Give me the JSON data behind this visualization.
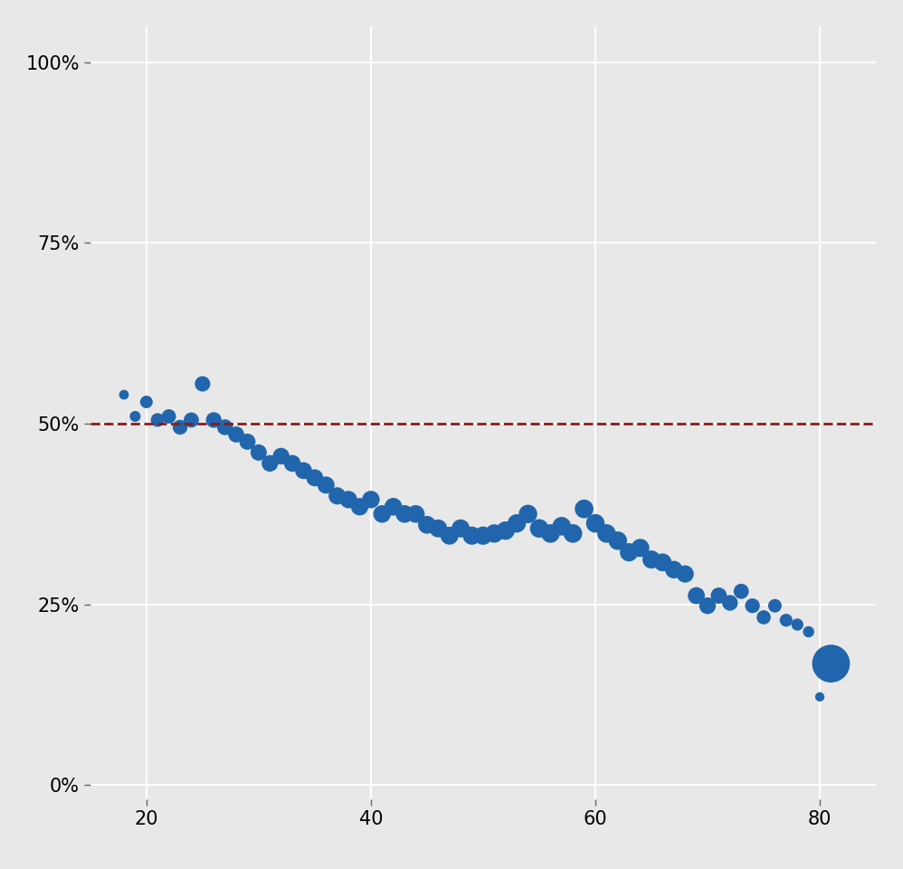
{
  "ages": [
    18,
    19,
    20,
    21,
    22,
    23,
    24,
    25,
    26,
    27,
    28,
    29,
    30,
    31,
    32,
    33,
    34,
    35,
    36,
    37,
    38,
    39,
    40,
    41,
    42,
    43,
    44,
    45,
    46,
    47,
    48,
    49,
    50,
    51,
    52,
    53,
    54,
    55,
    56,
    57,
    58,
    59,
    60,
    61,
    62,
    63,
    64,
    65,
    66,
    67,
    68,
    69,
    70,
    71,
    72,
    73,
    74,
    75,
    76,
    77,
    78,
    79,
    80,
    81
  ],
  "support": [
    0.54,
    0.51,
    0.53,
    0.505,
    0.51,
    0.495,
    0.505,
    0.555,
    0.505,
    0.495,
    0.485,
    0.475,
    0.46,
    0.445,
    0.455,
    0.445,
    0.435,
    0.425,
    0.415,
    0.4,
    0.395,
    0.385,
    0.395,
    0.375,
    0.385,
    0.375,
    0.375,
    0.36,
    0.355,
    0.345,
    0.355,
    0.345,
    0.345,
    0.348,
    0.352,
    0.362,
    0.375,
    0.355,
    0.348,
    0.358,
    0.348,
    0.382,
    0.362,
    0.348,
    0.338,
    0.322,
    0.328,
    0.312,
    0.308,
    0.298,
    0.292,
    0.262,
    0.248,
    0.262,
    0.252,
    0.268,
    0.248,
    0.232,
    0.248,
    0.228,
    0.222,
    0.212,
    0.122,
    0.168
  ],
  "n_respondents": [
    60,
    75,
    100,
    120,
    130,
    140,
    145,
    150,
    155,
    158,
    162,
    165,
    168,
    172,
    175,
    178,
    180,
    183,
    185,
    188,
    190,
    192,
    194,
    196,
    197,
    198,
    198,
    200,
    202,
    204,
    206,
    208,
    210,
    212,
    213,
    213,
    215,
    217,
    218,
    218,
    219,
    220,
    218,
    217,
    215,
    210,
    208,
    205,
    200,
    195,
    188,
    182,
    175,
    165,
    156,
    145,
    137,
    125,
    115,
    105,
    92,
    80,
    55,
    900
  ],
  "point_color": "#2166ac",
  "line_color": "#8b1a1a",
  "background_color": "#e8e8e8",
  "grid_color": "#ffffff",
  "xlim": [
    15,
    85
  ],
  "ylim": [
    -0.02,
    1.05
  ],
  "yticks": [
    0.0,
    0.25,
    0.5,
    0.75,
    1.0
  ],
  "xticks": [
    20,
    40,
    60,
    80
  ],
  "dashed_line_y": 0.5
}
